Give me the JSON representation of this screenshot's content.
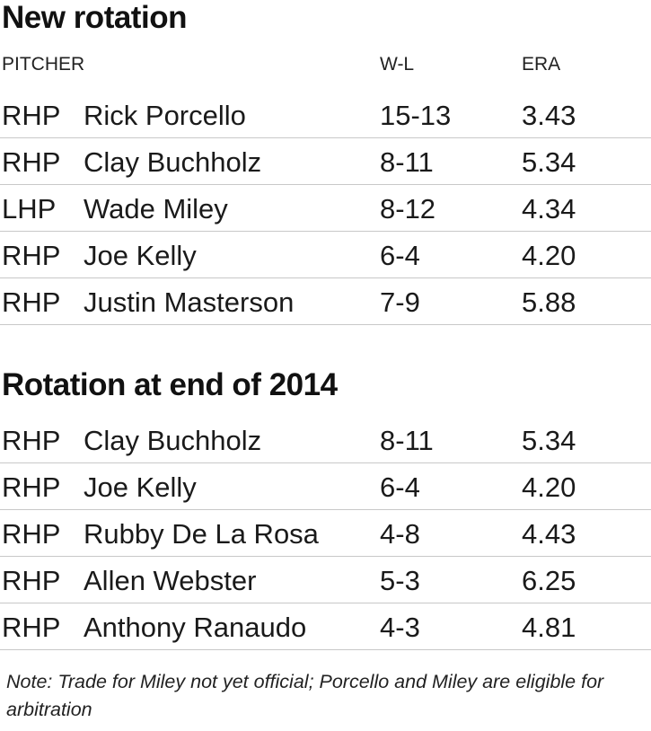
{
  "section1": {
    "title": "New rotation",
    "headers": {
      "pitcher": "PITCHER",
      "wl": "W-L",
      "era": "ERA"
    },
    "rows": [
      {
        "pos": "RHP",
        "name": "Rick Porcello",
        "wl": "15-13",
        "era": "3.43"
      },
      {
        "pos": "RHP",
        "name": "Clay Buchholz",
        "wl": "8-11",
        "era": "5.34"
      },
      {
        "pos": "LHP",
        "name": "Wade Miley",
        "wl": "8-12",
        "era": "4.34"
      },
      {
        "pos": "RHP",
        "name": "Joe Kelly",
        "wl": "6-4",
        "era": "4.20"
      },
      {
        "pos": "RHP",
        "name": "Justin Masterson",
        "wl": "7-9",
        "era": "5.88"
      }
    ]
  },
  "section2": {
    "title": "Rotation at end of 2014",
    "rows": [
      {
        "pos": "RHP",
        "name": "Clay Buchholz",
        "wl": "8-11",
        "era": "5.34"
      },
      {
        "pos": "RHP",
        "name": "Joe Kelly",
        "wl": "6-4",
        "era": "4.20"
      },
      {
        "pos": "RHP",
        "name": "Rubby De La Rosa",
        "wl": "4-8",
        "era": "4.43"
      },
      {
        "pos": "RHP",
        "name": "Allen Webster",
        "wl": "5-3",
        "era": "6.25"
      },
      {
        "pos": "RHP",
        "name": "Anthony Ranaudo",
        "wl": "4-3",
        "era": "4.81"
      }
    ]
  },
  "note": "Note: Trade for Miley not yet official; Porcello and Miley are eligible for arbitration"
}
